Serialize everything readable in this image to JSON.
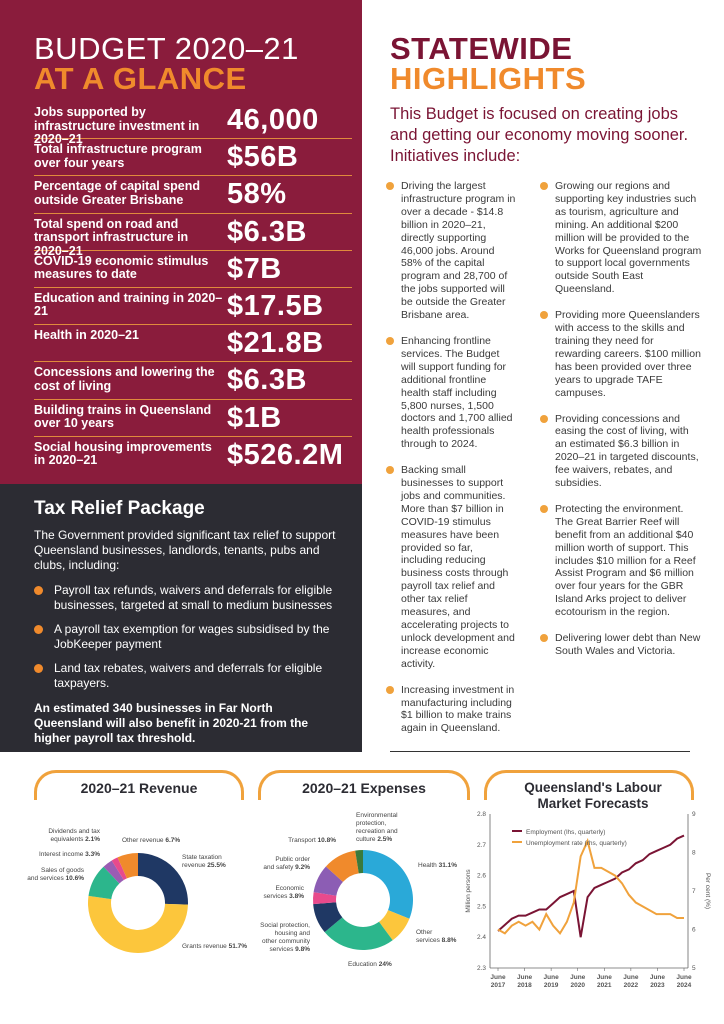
{
  "colors": {
    "maroon": "#8a1c3c",
    "orange": "#f08a2c",
    "dark": "#2c2c33"
  },
  "left": {
    "title_line1": "BUDGET 2020–21",
    "title_line2": "AT A GLANCE",
    "stats": [
      {
        "label": "Jobs supported by infrastructure investment in 2020–21",
        "value": "46,000"
      },
      {
        "label": "Total infrastructure program over four years",
        "value": "$56B"
      },
      {
        "label": "Percentage of capital spend outside Greater Brisbane",
        "value": "58%"
      },
      {
        "label": "Total spend on road and transport infrastructure in 2020–21",
        "value": "$6.3B"
      },
      {
        "label": "COVID-19 economic stimulus measures to date",
        "value": "$7B"
      },
      {
        "label": "Education and training in 2020–21",
        "value": "$17.5B"
      },
      {
        "label": "Health in 2020–21",
        "value": "$21.8B"
      },
      {
        "label": "Concessions and lowering the cost of living",
        "value": "$6.3B"
      },
      {
        "label": "Building trains in Queensland over 10 years",
        "value": "$1B"
      },
      {
        "label": "Social housing improvements in 2020–21",
        "value": "$526.2M"
      }
    ]
  },
  "tax": {
    "title": "Tax Relief Package",
    "intro": "The Government provided significant tax relief to support Queensland businesses, landlords, tenants, pubs and clubs, including:",
    "items": [
      "Payroll tax refunds, waivers and deferrals for eligible businesses, targeted at small to medium businesses",
      "A payroll tax exemption for wages subsidised by the JobKeeper payment",
      "Land tax rebates, waivers and deferrals for eligible taxpayers."
    ],
    "note": "An estimated 340 businesses in Far North Queensland will also benefit in 2020-21 from the higher payroll tax threshold."
  },
  "right": {
    "title_line1": "STATEWIDE",
    "title_line2": "HIGHLIGHTS",
    "intro": "This Budget is focused on creating jobs and getting our economy moving sooner. Initiatives include:",
    "col1": [
      "Driving the largest infrastructure program in over a decade - $14.8 billion in 2020–21, directly supporting 46,000 jobs. Around 58% of the capital program and 28,700 of the jobs supported will be outside the Greater Brisbane area.",
      "Enhancing frontline services. The Budget will support funding for additional frontline health staff including 5,800 nurses, 1,500 doctors and 1,700 allied health professionals through to 2024.",
      "Backing small businesses to support jobs and communities. More than $7 billion in COVID-19 stimulus measures have been provided so far, including reducing business costs through payroll tax relief and other tax relief measures, and accelerating projects to unlock development and increase economic activity.",
      "Increasing investment in manufacturing including $1 billion to make trains again in Queensland."
    ],
    "col2": [
      "Growing our regions and supporting key industries such as tourism, agriculture and mining. An additional $200 million will be provided to the Works for Queensland program to support local governments outside South East Queensland.",
      "Providing more Queenslanders with access to the skills and training they need for rewarding careers. $100 million has been provided over three years to upgrade TAFE campuses.",
      "Providing concessions and easing the cost of living, with an estimated $6.3 billion in 2020–21 in targeted discounts, fee waivers, rebates, and subsidies.",
      "Protecting the environment. The Great Barrier Reef will benefit from an additional $40 million worth of support. This includes $10 million for a Reef Assist Program and $6 million over four years for the GBR Island Arks project to deliver ecotourism in the region.",
      "Delivering lower debt than New South Wales and Victoria."
    ]
  },
  "chart_data": [
    {
      "type": "pie",
      "title": "2020–21 Revenue",
      "slices": [
        {
          "name": "State taxation revenue",
          "value": 25.5,
          "label_pct": "25.5%",
          "color": "#1f3864"
        },
        {
          "name": "Grants revenue",
          "value": 51.7,
          "label_pct": "51.7%",
          "color": "#fcc63c"
        },
        {
          "name": "Sales of goods and services",
          "value": 10.6,
          "label_pct": "10.6%",
          "color": "#2cb68c"
        },
        {
          "name": "Interest income",
          "value": 3.3,
          "label_pct": "3.3%",
          "color": "#9b5db4"
        },
        {
          "name": "Dividends and tax equivalents",
          "value": 2.1,
          "label_pct": "2.1%",
          "color": "#e84a8c"
        },
        {
          "name": "Other revenue",
          "value": 6.7,
          "label_pct": "6.7%",
          "color": "#f08a2c"
        }
      ]
    },
    {
      "type": "pie",
      "title": "2020–21 Expenses",
      "slices": [
        {
          "name": "Health",
          "value": 31.1,
          "label_pct": "31.1%",
          "color": "#2aa9d8"
        },
        {
          "name": "Other services",
          "value": 8.8,
          "label_pct": "8.8%",
          "color": "#fcc63c"
        },
        {
          "name": "Education",
          "value": 24.0,
          "label_pct": "24%",
          "color": "#2cb68c"
        },
        {
          "name": "Social protection, housing and other community services",
          "value": 9.8,
          "label_pct": "9.8%",
          "color": "#1f3864"
        },
        {
          "name": "Economic services",
          "value": 3.8,
          "label_pct": "3.8%",
          "color": "#e84a8c"
        },
        {
          "name": "Public order and safety",
          "value": 9.2,
          "label_pct": "9.2%",
          "color": "#8c5db4"
        },
        {
          "name": "Transport",
          "value": 10.8,
          "label_pct": "10.8%",
          "color": "#f08a2c"
        },
        {
          "name": "Environmental protection, recreation and culture",
          "value": 2.5,
          "label_pct": "2.5%",
          "color": "#3a7a3c"
        }
      ]
    },
    {
      "type": "line",
      "title": "Queensland's Labour Market Forecasts",
      "ylabel": "Million persons",
      "y2label": "Per cent (%)",
      "ylim": [
        2.3,
        2.8
      ],
      "y2lim": [
        5,
        9
      ],
      "yticks": [
        "2.3",
        "2.4",
        "2.5",
        "2.6",
        "2.7",
        "2.8"
      ],
      "y2ticks": [
        "5",
        "6",
        "7",
        "8",
        "9"
      ],
      "xticks": [
        [
          "June",
          "2017"
        ],
        [
          "June",
          "2018"
        ],
        [
          "June",
          "2019"
        ],
        [
          "June",
          "2020"
        ],
        [
          "June",
          "2021"
        ],
        [
          "June",
          "2022"
        ],
        [
          "June",
          "2023"
        ],
        [
          "June",
          "2024"
        ]
      ],
      "series": [
        {
          "name": "Employment (lhs, quarterly)",
          "axis": "left",
          "color": "#7a1434",
          "values": [
            2.42,
            2.44,
            2.46,
            2.47,
            2.47,
            2.48,
            2.49,
            2.49,
            2.51,
            2.53,
            2.54,
            2.55,
            2.4,
            2.53,
            2.56,
            2.57,
            2.58,
            2.59,
            2.61,
            2.62,
            2.64,
            2.65,
            2.67,
            2.68,
            2.69,
            2.7,
            2.72,
            2.73
          ]
        },
        {
          "name": "Unemployment rate (rhs, quarterly)",
          "axis": "right",
          "color": "#f0a23c",
          "values": [
            6.0,
            5.9,
            6.1,
            6.2,
            6.1,
            6.2,
            6.0,
            6.4,
            6.1,
            5.9,
            6.2,
            6.7,
            7.9,
            8.3,
            7.6,
            7.6,
            7.5,
            7.4,
            7.2,
            6.9,
            6.7,
            6.6,
            6.5,
            6.4,
            6.4,
            6.4,
            6.3,
            6.3
          ]
        }
      ]
    }
  ]
}
